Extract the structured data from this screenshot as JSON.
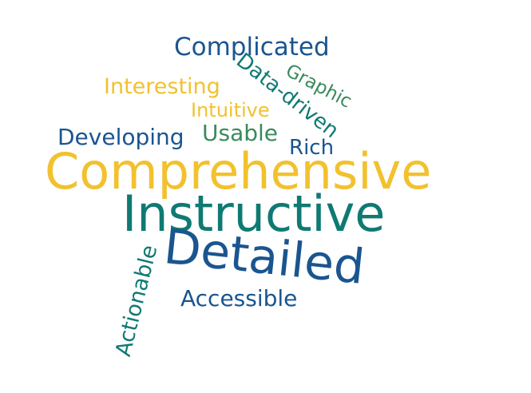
{
  "palette": {
    "navy": "#1a5590",
    "teal": "#0f7a73",
    "green": "#3a8a5c",
    "yellow": "#f2c12e",
    "background": "#ffffff"
  },
  "words": [
    {
      "id": "comprehensive",
      "text": "Comprehensive",
      "color": "#f2c12e"
    },
    {
      "id": "instructive",
      "text": "Instructive",
      "color": "#0f7a73"
    },
    {
      "id": "detailed",
      "text": "Detailed",
      "color": "#1a5590"
    },
    {
      "id": "complicated",
      "text": "Complicated",
      "color": "#1a5590"
    },
    {
      "id": "data-driven",
      "text": "Data-driven",
      "color": "#0f7a73"
    },
    {
      "id": "graphic",
      "text": "Graphic",
      "color": "#3a8a5c"
    },
    {
      "id": "interesting",
      "text": "Interesting",
      "color": "#f2c12e"
    },
    {
      "id": "intuitive",
      "text": "Intuitive",
      "color": "#f2c12e"
    },
    {
      "id": "developing",
      "text": "Developing",
      "color": "#1a5590"
    },
    {
      "id": "usable",
      "text": "Usable",
      "color": "#3a8a5c"
    },
    {
      "id": "rich",
      "text": "Rich",
      "color": "#1a5590"
    },
    {
      "id": "actionable",
      "text": "Actionable",
      "color": "#0f7a73"
    },
    {
      "id": "accessible",
      "text": "Accessible",
      "color": "#1a5590"
    }
  ]
}
